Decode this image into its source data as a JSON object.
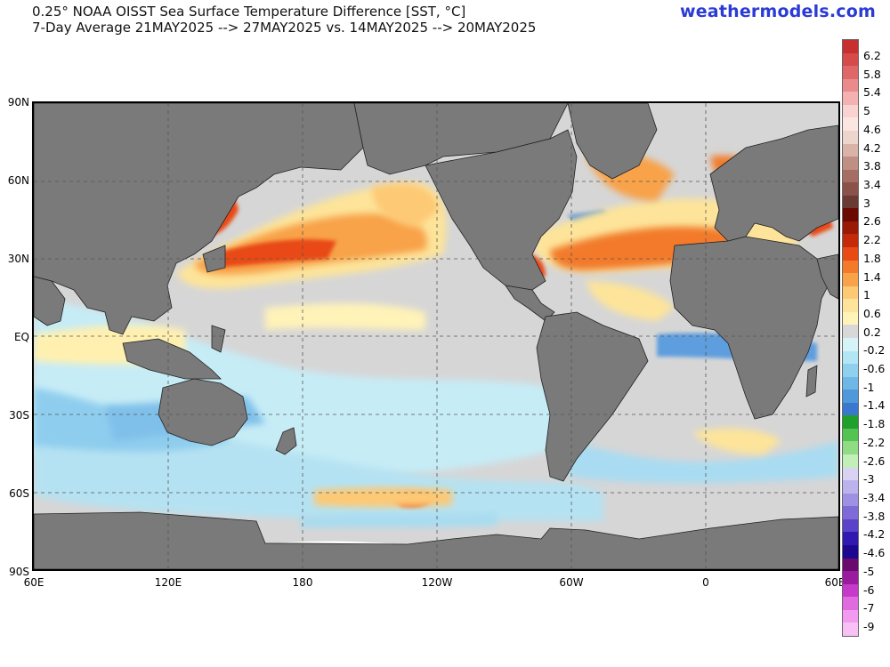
{
  "header": {
    "title_line1": "0.25° NOAA OISST Sea Surface Temperature Difference [SST, °C]",
    "title_line2": "7-Day Average 21MAY2025 --> 27MAY2025  vs. 14MAY2025 --> 20MAY2025",
    "brand": "weathermodels.com"
  },
  "map": {
    "lat_labels": [
      "90N",
      "60N",
      "30N",
      "EQ",
      "30S",
      "60S",
      "90S"
    ],
    "lon_labels": [
      "60E",
      "120E",
      "180",
      "120W",
      "60W",
      "0",
      "60E"
    ],
    "colors": {
      "land": "#7a7a7a",
      "neutral_ocean": "#d6d6d6",
      "ice": "#ffffff",
      "grid": "#555555"
    }
  },
  "colorbar": {
    "labels": [
      "6.2",
      "5.8",
      "5.4",
      "5",
      "4.6",
      "4.2",
      "3.8",
      "3.4",
      "3",
      "2.6",
      "2.2",
      "1.8",
      "1.4",
      "1",
      "0.6",
      "0.2",
      "-0.2",
      "-0.6",
      "-1",
      "-1.4",
      "-1.8",
      "-2.2",
      "-2.6",
      "-3",
      "-3.4",
      "-3.8",
      "-4.2",
      "-4.6",
      "-5",
      "-6",
      "-7",
      "-9"
    ],
    "colors": [
      "#c8302f",
      "#d64a4a",
      "#e06767",
      "#ea8a8a",
      "#f3b1b1",
      "#f8d3d0",
      "#fbe6e2",
      "#eed5cc",
      "#d9b3a8",
      "#c08f84",
      "#a46e63",
      "#8a5249",
      "#6a3b33",
      "#6b0a00",
      "#9a1a05",
      "#c42a0a",
      "#e84a14",
      "#f27a2a",
      "#f8a24a",
      "#fdc974",
      "#fde49a",
      "#fff3b8",
      "#d8d8d8",
      "#d6f4f8",
      "#b2e6f4",
      "#8fd0ee",
      "#6fb7e6",
      "#4f98da",
      "#3a78cf",
      "#1fa02c",
      "#53c451",
      "#8fdc84",
      "#c2eeb8",
      "#d9d3f3",
      "#bcb3ec",
      "#9e90e2",
      "#7e6bd8",
      "#5a43c8",
      "#3018b0",
      "#1c0890",
      "#6a0a6e",
      "#9a1aa0",
      "#c53ac8",
      "#e06ae0",
      "#f19af0",
      "#f8c0f4"
    ]
  }
}
